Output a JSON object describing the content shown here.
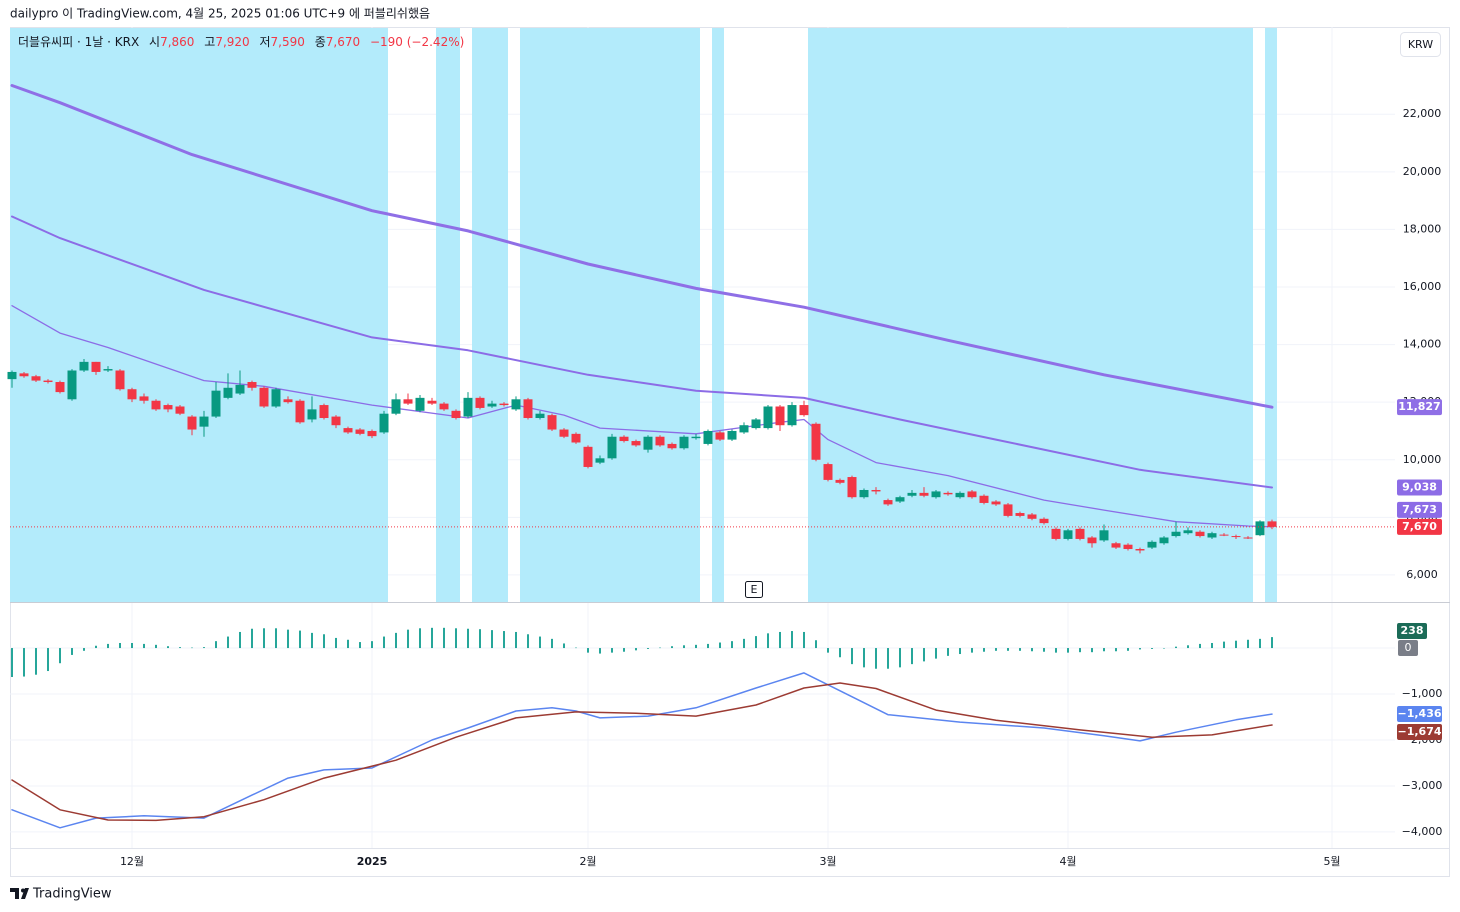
{
  "header": {
    "published": "dailypro 이 TradingView.com, 4월 25, 2025 01:06 UTC+9 에 퍼블리쉬했음"
  },
  "footer": {
    "brand": "TradingView"
  },
  "chart_data": [
    {
      "type": "candlestick",
      "symbol": "더블유씨피 · 1날 · KRX",
      "ohlc": [
        {
          "label": "시",
          "value": "7,860"
        },
        {
          "label": "고",
          "value": "7,920"
        },
        {
          "label": "저",
          "value": "7,590"
        },
        {
          "label": "종",
          "value": "7,670"
        }
      ],
      "change": "−190 (−2.42%)",
      "currency": "KRW",
      "earnings_marker": "E",
      "up_color": "#089981",
      "down_color": "#f23645",
      "band_color": "#b3ebfb",
      "grid": true,
      "close_label": "7,670",
      "ylim": [
        5060,
        25030
      ],
      "yticks": [
        {
          "value": 6000,
          "label": "6,000"
        },
        {
          "value": 8000,
          "label": "8,000"
        },
        {
          "value": 10000,
          "label": "10,000"
        },
        {
          "value": 12000,
          "label": "12,000"
        },
        {
          "value": 14000,
          "label": "14,000"
        },
        {
          "value": 16000,
          "label": "16,000"
        },
        {
          "value": 18000,
          "label": "18,000"
        },
        {
          "value": 20000,
          "label": "20,000"
        },
        {
          "value": 22000,
          "label": "22,000"
        }
      ],
      "categories": [
        null,
        null,
        null,
        null,
        null,
        null,
        null,
        null,
        null,
        null,
        "12월",
        null,
        null,
        null,
        null,
        null,
        null,
        null,
        null,
        null,
        null,
        null,
        null,
        null,
        null,
        null,
        null,
        null,
        null,
        null,
        "2025",
        null,
        null,
        null,
        null,
        null,
        null,
        null,
        null,
        null,
        null,
        null,
        null,
        null,
        null,
        null,
        null,
        null,
        "2월",
        null,
        null,
        null,
        null,
        null,
        null,
        null,
        null,
        null,
        null,
        null,
        null,
        null,
        null,
        null,
        null,
        null,
        null,
        null,
        "3월",
        null,
        null,
        null,
        null,
        null,
        null,
        null,
        null,
        null,
        null,
        null,
        null,
        null,
        null,
        null,
        null,
        null,
        null,
        null,
        "4월",
        null,
        null,
        null,
        null,
        null,
        null,
        null,
        null,
        null,
        null,
        null,
        null,
        null,
        null,
        null,
        null,
        null,
        null,
        null,
        null,
        null,
        "5월",
        null,
        null,
        null,
        null,
        null
      ],
      "open": [
        12800,
        13000,
        12900,
        12750,
        12700,
        12100,
        13100,
        13400,
        13100,
        13100,
        12450,
        12200,
        12050,
        11900,
        11850,
        11500,
        11150,
        11500,
        12150,
        12300,
        12700,
        12500,
        11850,
        12100,
        12050,
        11400,
        11900,
        11500,
        11100,
        11050,
        11000,
        10950,
        11600,
        12100,
        11700,
        12050,
        11950,
        11700,
        11500,
        12150,
        11850,
        11950,
        11750,
        12100,
        11450,
        11550,
        11050,
        10900,
        10450,
        9900,
        10050,
        10800,
        10650,
        10350,
        10800,
        10550,
        10400,
        10750,
        10550,
        10950,
        10700,
        10950,
        11100,
        11100,
        11850,
        11200,
        11900,
        11250,
        9850,
        9300,
        9400,
        8700,
        8950,
        8600,
        8550,
        8750,
        8850,
        8700,
        8850,
        8700,
        8900,
        8750,
        8550,
        8450,
        8150,
        8100,
        7950,
        7600,
        7250,
        7600,
        7300,
        7200,
        7100,
        7050,
        6900,
        6950,
        7100,
        7350,
        7450,
        7500,
        7300,
        7400,
        7350,
        7300,
        7380,
        7860,
        null,
        null,
        null,
        null,
        null,
        null,
        null,
        null,
        null,
        null
      ],
      "high": [
        13100,
        13050,
        12950,
        12800,
        12750,
        13150,
        13500,
        13400,
        13250,
        13150,
        12500,
        12300,
        12100,
        11950,
        11900,
        11550,
        11700,
        12700,
        13000,
        13100,
        12750,
        12550,
        12500,
        12200,
        12100,
        12200,
        11950,
        11550,
        11150,
        11100,
        11050,
        11700,
        12300,
        12300,
        12250,
        12150,
        12000,
        11750,
        12350,
        12200,
        12050,
        12000,
        12200,
        12150,
        11700,
        11600,
        11100,
        10950,
        10500,
        10150,
        10900,
        10850,
        10700,
        10850,
        10850,
        10600,
        10850,
        10900,
        11050,
        11000,
        11050,
        11300,
        11450,
        11900,
        11900,
        12000,
        12050,
        11300,
        9900,
        9350,
        9450,
        9000,
        9050,
        8650,
        8750,
        8950,
        9050,
        8950,
        8900,
        8900,
        8950,
        8800,
        8600,
        8500,
        8200,
        8150,
        8000,
        7650,
        7600,
        7650,
        7350,
        7750,
        7150,
        7100,
        6950,
        7200,
        7350,
        7850,
        7650,
        7550,
        7500,
        7450,
        7400,
        7350,
        7900,
        7920,
        null,
        null,
        null,
        null,
        null,
        null,
        null,
        null,
        null,
        null
      ],
      "low": [
        12500,
        12850,
        12700,
        12650,
        12300,
        12050,
        13050,
        12950,
        13050,
        12400,
        12000,
        11950,
        11700,
        11650,
        11550,
        10850,
        10800,
        11450,
        12100,
        12250,
        12400,
        11800,
        11800,
        11950,
        11250,
        11300,
        11400,
        11100,
        10900,
        10850,
        10750,
        10900,
        11550,
        11900,
        11650,
        11900,
        11700,
        11400,
        11450,
        11750,
        11800,
        11850,
        11700,
        11400,
        11400,
        11000,
        10750,
        10550,
        9700,
        9850,
        10000,
        10600,
        10450,
        10250,
        10450,
        10350,
        10350,
        10700,
        10500,
        10650,
        10650,
        10900,
        11050,
        11050,
        11000,
        11150,
        11500,
        9950,
        9250,
        9150,
        8650,
        8650,
        8800,
        8400,
        8500,
        8700,
        8700,
        8650,
        8750,
        8650,
        8650,
        8450,
        8400,
        8000,
        8000,
        7900,
        7750,
        7200,
        7200,
        7200,
        6950,
        7150,
        6900,
        6850,
        6750,
        6900,
        7050,
        7300,
        7400,
        7300,
        7250,
        7350,
        7250,
        7250,
        7350,
        7590,
        null,
        null,
        null,
        null,
        null,
        null,
        null,
        null,
        null,
        null
      ],
      "close": [
        13050,
        12900,
        12750,
        12700,
        12350,
        13100,
        13400,
        13050,
        13150,
        12450,
        12100,
        12050,
        11750,
        11750,
        11600,
        11050,
        11500,
        12400,
        12500,
        12600,
        12500,
        11850,
        12450,
        12000,
        11300,
        11750,
        11450,
        11200,
        10950,
        10900,
        10820,
        11600,
        12100,
        11950,
        12150,
        11950,
        11750,
        11450,
        12150,
        11800,
        11950,
        11900,
        12100,
        11450,
        11600,
        11050,
        10800,
        10600,
        9750,
        10050,
        10800,
        10650,
        10500,
        10800,
        10500,
        10400,
        10800,
        10800,
        11000,
        10700,
        11000,
        11200,
        11400,
        11850,
        11200,
        11900,
        11550,
        10000,
        9300,
        9200,
        8700,
        8950,
        8900,
        8450,
        8700,
        8850,
        8750,
        8900,
        8800,
        8850,
        8700,
        8500,
        8450,
        8050,
        8050,
        7950,
        7800,
        7250,
        7550,
        7250,
        7100,
        7550,
        6950,
        6900,
        6850,
        7150,
        7300,
        7500,
        7550,
        7350,
        7450,
        7380,
        7330,
        7290,
        7860,
        7670,
        null,
        null,
        null,
        null,
        null,
        null,
        null,
        null,
        null,
        null
      ],
      "series": [
        {
          "color": "#8f6fe6",
          "width": 3,
          "x": [
            0,
            4,
            15,
            30,
            38,
            48,
            57,
            66,
            78,
            91,
            105
          ],
          "values": [
            23000,
            22400,
            20600,
            18650,
            17950,
            16800,
            15950,
            15300,
            14150,
            12950,
            11827
          ],
          "label": "11,827"
        },
        {
          "color": "#8c6ce6",
          "width": 2,
          "x": [
            0,
            4,
            16,
            30,
            38,
            48,
            57,
            66,
            74,
            82,
            94,
            105
          ],
          "values": [
            18450,
            17700,
            15900,
            14250,
            13800,
            12950,
            12400,
            12150,
            11400,
            10700,
            9650,
            9038
          ],
          "label": "9,038"
        },
        {
          "color": "#8c6ce6",
          "width": 1.3,
          "x": [
            0,
            4,
            8,
            16,
            21,
            30,
            38,
            42,
            46,
            49,
            57,
            64,
            66,
            68,
            72,
            78,
            86,
            91,
            97,
            103,
            105
          ],
          "values": [
            15350,
            14400,
            13900,
            12750,
            12550,
            11900,
            11450,
            11900,
            11550,
            11100,
            10900,
            11300,
            11400,
            10700,
            9900,
            9450,
            8600,
            8250,
            7850,
            7700,
            7673
          ],
          "label": "7,673"
        }
      ]
    },
    {
      "type": "macd",
      "color": "#26a69a",
      "label_color": "#1b6b57",
      "zero_color": "#7a7e88",
      "ylim": [
        -4350,
        980
      ],
      "yticks": [
        0,
        {
          "value": -1000,
          "label": "−1,000"
        },
        {
          "value": -2000,
          "label": "−2,000"
        },
        {
          "value": -3000,
          "label": "−3,000"
        },
        {
          "value": -4000,
          "label": "−4,000"
        }
      ],
      "values": [
        -630,
        -620,
        -580,
        -500,
        -330,
        -150,
        -60,
        50,
        90,
        110,
        110,
        90,
        70,
        40,
        20,
        10,
        20,
        150,
        250,
        350,
        420,
        430,
        430,
        400,
        380,
        330,
        300,
        220,
        180,
        130,
        150,
        250,
        330,
        400,
        430,
        440,
        440,
        430,
        420,
        410,
        390,
        370,
        350,
        300,
        250,
        200,
        100,
        10,
        -100,
        -120,
        -100,
        -80,
        -50,
        -20,
        10,
        40,
        60,
        70,
        90,
        120,
        150,
        200,
        260,
        320,
        350,
        370,
        350,
        170,
        -100,
        -200,
        -350,
        -420,
        -450,
        -450,
        -420,
        -350,
        -290,
        -230,
        -170,
        -130,
        -100,
        -80,
        -60,
        -60,
        -60,
        -70,
        -80,
        -100,
        -100,
        -90,
        -90,
        -70,
        -70,
        -60,
        -30,
        -20,
        0,
        30,
        60,
        90,
        110,
        140,
        160,
        180,
        200,
        238,
        null,
        null,
        null,
        null,
        null,
        null,
        null,
        null,
        null,
        null
      ],
      "series": [
        {
          "color": "#5b85f0",
          "width": 1.5,
          "x": [
            0,
            4,
            7,
            11,
            16,
            20,
            23,
            26,
            30,
            35,
            38,
            42,
            45,
            47,
            49,
            53,
            57,
            62,
            66,
            68,
            73,
            79,
            86,
            91,
            94,
            97,
            102,
            105
          ],
          "values": [
            -3520,
            -3910,
            -3700,
            -3650,
            -3700,
            -3200,
            -2830,
            -2650,
            -2610,
            -2000,
            -1740,
            -1370,
            -1300,
            -1370,
            -1520,
            -1480,
            -1300,
            -870,
            -540,
            -800,
            -1450,
            -1610,
            -1740,
            -1910,
            -2020,
            -1830,
            -1560,
            -1436
          ],
          "label": "−1,436"
        },
        {
          "color": "#9c3b33",
          "width": 1.5,
          "x": [
            0,
            4,
            8,
            12,
            16,
            21,
            26,
            32,
            37,
            42,
            47,
            52,
            57,
            62,
            66,
            69,
            72,
            77,
            82,
            89,
            95,
            100,
            105
          ],
          "values": [
            -2870,
            -3520,
            -3740,
            -3750,
            -3670,
            -3300,
            -2830,
            -2440,
            -1940,
            -1520,
            -1390,
            -1420,
            -1480,
            -1240,
            -870,
            -760,
            -880,
            -1350,
            -1570,
            -1780,
            -1940,
            -1890,
            -1674
          ],
          "label": "−1,674"
        }
      ]
    }
  ]
}
